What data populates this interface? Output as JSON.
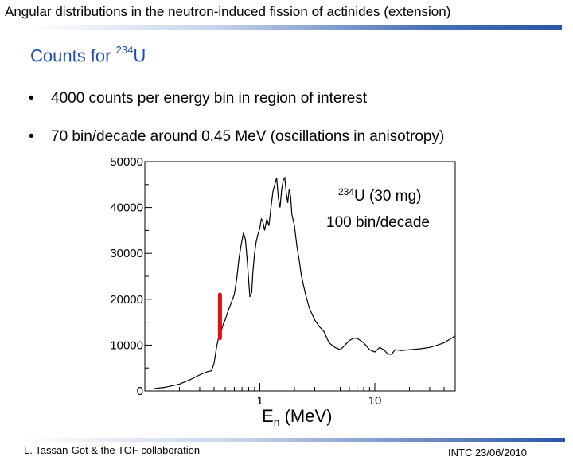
{
  "header": {
    "title": "Angular distributions in the neutron-induced fission of actinides (extension)"
  },
  "subtitle": {
    "text": "Counts for ",
    "isotope_mass": "234",
    "isotope_symbol": "U"
  },
  "bullets": [
    {
      "marker": "•",
      "text": "4000 counts per energy bin in region of interest"
    },
    {
      "marker": "•",
      "text": "70 bin/decade around 0.45 MeV (oscillations in anisotropy)"
    }
  ],
  "footer": {
    "left": "L. Tassan-Got & the TOF collaboration",
    "right": "INTC 23/06/2010"
  },
  "colors": {
    "subtitle": "#1f4fb5",
    "marker": "#e01010",
    "curve": "#000000"
  },
  "chart_data": {
    "type": "line",
    "title": "",
    "xlabel_main": "E",
    "xlabel_sub": "n",
    "xlabel_unit": " (MeV)",
    "ylabel": "",
    "x_scale": "log",
    "xlim": [
      0.1,
      50
    ],
    "ylim": [
      0,
      50000
    ],
    "y_ticks": [
      0,
      10000,
      20000,
      30000,
      40000,
      50000
    ],
    "y_tick_labels": [
      "0",
      "10000",
      "20000",
      "30000",
      "40000",
      "50000"
    ],
    "x_ticks": [
      1,
      10
    ],
    "x_tick_labels": [
      "1",
      "10"
    ],
    "annotation": {
      "isotope_mass": "234",
      "line1": "U (30 mg)",
      "line2": "100 bin/decade"
    },
    "marker": {
      "x": 0.45,
      "y_from": 21000,
      "y_to": 11500
    },
    "series": [
      {
        "name": "234U (30 mg)",
        "x": [
          0.12,
          0.15,
          0.2,
          0.25,
          0.3,
          0.35,
          0.38,
          0.4,
          0.42,
          0.44,
          0.46,
          0.48,
          0.5,
          0.53,
          0.56,
          0.6,
          0.63,
          0.66,
          0.69,
          0.72,
          0.75,
          0.78,
          0.8,
          0.82,
          0.85,
          0.87,
          0.9,
          0.93,
          0.96,
          1.0,
          1.03,
          1.06,
          1.1,
          1.15,
          1.2,
          1.25,
          1.3,
          1.35,
          1.4,
          1.45,
          1.5,
          1.55,
          1.6,
          1.65,
          1.7,
          1.75,
          1.8,
          1.85,
          1.9,
          2.0,
          2.1,
          2.2,
          2.3,
          2.5,
          2.7,
          3.0,
          3.3,
          3.6,
          4.0,
          4.5,
          5.0,
          5.5,
          6.0,
          6.5,
          7.0,
          7.5,
          8.0,
          9.0,
          10.0,
          11.0,
          12.0,
          13.0,
          14.0,
          15.0,
          17.0,
          20.0,
          25.0,
          30.0,
          35.0,
          40.0,
          45.0,
          50.0
        ],
        "values": [
          500,
          800,
          1500,
          2500,
          3500,
          4200,
          4400,
          6000,
          9500,
          12000,
          13000,
          14500,
          15500,
          17500,
          19000,
          21000,
          24500,
          29000,
          32000,
          34500,
          33000,
          28000,
          24000,
          20500,
          21500,
          26000,
          30000,
          32500,
          34000,
          35500,
          37500,
          37000,
          35000,
          37500,
          36000,
          40000,
          43500,
          45000,
          46500,
          42000,
          40000,
          44000,
          46000,
          46500,
          43000,
          41000,
          44000,
          42500,
          38500,
          36000,
          31500,
          28500,
          25000,
          21000,
          18000,
          15500,
          14000,
          13000,
          10500,
          9500,
          9000,
          10000,
          11000,
          11500,
          11500,
          11000,
          10500,
          9000,
          8500,
          9500,
          9000,
          8000,
          8000,
          9000,
          8800,
          9000,
          9200,
          9500,
          10000,
          10500,
          11300,
          12000
        ]
      }
    ]
  }
}
